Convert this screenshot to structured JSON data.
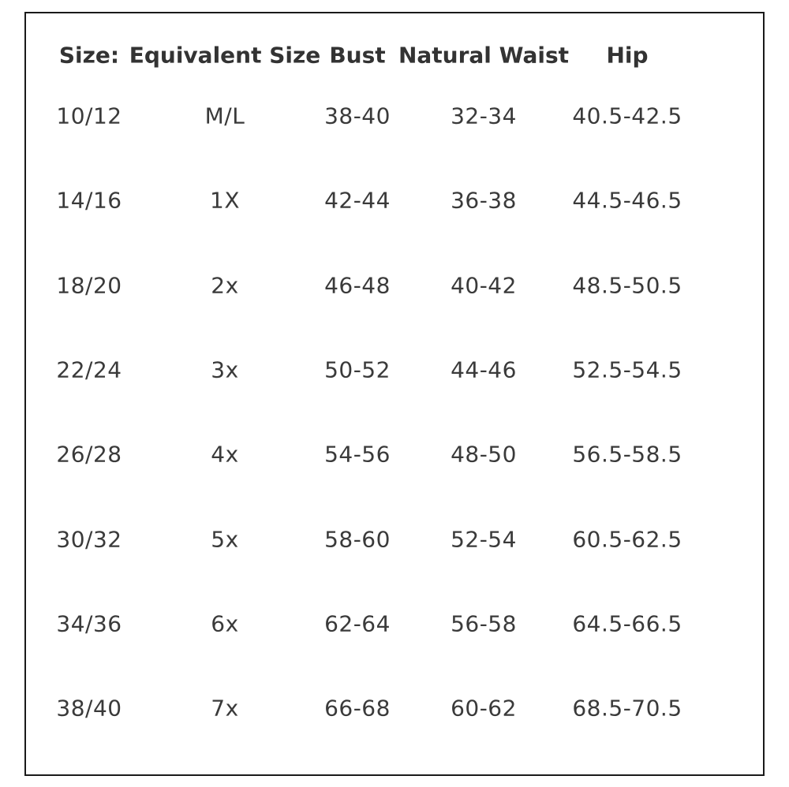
{
  "table": {
    "header": [
      "Size:",
      "Equivalent Size",
      "Bust",
      "Natural Waist",
      "Hip"
    ],
    "rows": [
      [
        "10/12",
        "M/L",
        "38-40",
        "32-34",
        "40.5-42.5"
      ],
      [
        "14/16",
        "1X",
        "42-44",
        "36-38",
        "44.5-46.5"
      ],
      [
        "18/20",
        "2x",
        "46-48",
        "40-42",
        "48.5-50.5"
      ],
      [
        "22/24",
        "3x",
        "50-52",
        "44-46",
        "52.5-54.5"
      ],
      [
        "26/28",
        "4x",
        "54-56",
        "48-50",
        "56.5-58.5"
      ],
      [
        "30/32",
        "5x",
        "58-60",
        "52-54",
        "60.5-62.5"
      ],
      [
        "34/36",
        "6x",
        "62-64",
        "56-58",
        "64.5-66.5"
      ],
      [
        "38/40",
        "7x",
        "66-68",
        "60-62",
        "68.5-70.5"
      ]
    ]
  }
}
